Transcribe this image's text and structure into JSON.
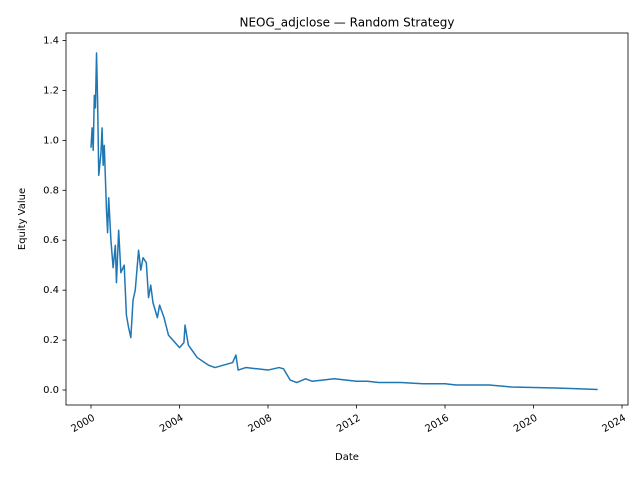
{
  "chart_data": {
    "type": "line",
    "title": "NEOG_adjclose — Random Strategy",
    "x_label": "Date",
    "y_label": "Equity Value",
    "color": "#1f77b4",
    "x": [
      2000.0,
      2000.05,
      2000.1,
      2000.15,
      2000.2,
      2000.25,
      2000.3,
      2000.35,
      2000.45,
      2000.5,
      2000.55,
      2000.6,
      2000.7,
      2000.75,
      2000.8,
      2000.9,
      2001.0,
      2001.1,
      2001.15,
      2001.25,
      2001.35,
      2001.5,
      2001.6,
      2001.7,
      2001.8,
      2001.9,
      2002.0,
      2002.15,
      2002.25,
      2002.35,
      2002.5,
      2002.6,
      2002.7,
      2002.8,
      2003.0,
      2003.1,
      2003.3,
      2003.5,
      2003.8,
      2004.0,
      2004.2,
      2004.25,
      2004.4,
      2004.8,
      2005.3,
      2005.6,
      2006.0,
      2006.4,
      2006.55,
      2006.65,
      2007.0,
      2007.5,
      2008.0,
      2008.5,
      2008.7,
      2009.0,
      2009.3,
      2009.7,
      2010.0,
      2011.0,
      2012.0,
      2012.5,
      2013.0,
      2014.0,
      2015.0,
      2016.0,
      2016.5,
      2018.0,
      2019.0,
      2020.0,
      2021.0,
      2022.0,
      2022.9
    ],
    "values": [
      0.97,
      1.05,
      0.96,
      1.18,
      1.13,
      1.35,
      1.15,
      0.86,
      0.95,
      1.05,
      0.9,
      0.98,
      0.72,
      0.63,
      0.77,
      0.6,
      0.49,
      0.58,
      0.43,
      0.64,
      0.47,
      0.5,
      0.3,
      0.25,
      0.21,
      0.36,
      0.4,
      0.56,
      0.48,
      0.53,
      0.51,
      0.37,
      0.42,
      0.35,
      0.29,
      0.34,
      0.29,
      0.22,
      0.19,
      0.17,
      0.19,
      0.26,
      0.18,
      0.13,
      0.1,
      0.09,
      0.1,
      0.11,
      0.14,
      0.08,
      0.09,
      0.085,
      0.08,
      0.09,
      0.085,
      0.04,
      0.03,
      0.045,
      0.035,
      0.045,
      0.035,
      0.035,
      0.03,
      0.03,
      0.025,
      0.025,
      0.02,
      0.02,
      0.012,
      0.01,
      0.008,
      0.005,
      0.002
    ],
    "xlim": [
      1998.87,
      2024.27
    ],
    "xticks": [
      2000,
      2004,
      2008,
      2012,
      2016,
      2020,
      2024
    ],
    "ylim": [
      -0.06,
      1.43
    ],
    "yticks": [
      {
        "value": 0,
        "label": "0.0"
      },
      0.2,
      0.4,
      0.6,
      0.8,
      {
        "value": 1,
        "label": "1.0"
      },
      1.2,
      1.4
    ]
  }
}
